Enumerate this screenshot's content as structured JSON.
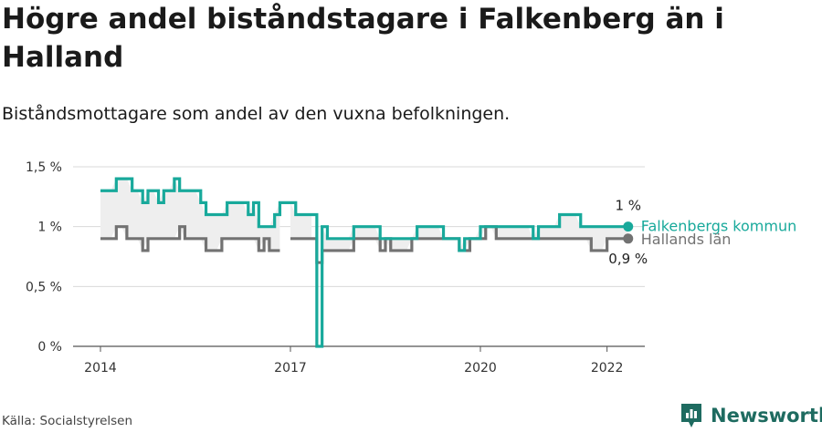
{
  "title": "Högre andel biståndstagare i Falkenberg än i Halland",
  "subtitle": "Biståndsmottagare som andel av den vuxna befolkningen.",
  "source": "Källa: Socialstyrelsen",
  "brand": "Newsworthy",
  "colors": {
    "falkenberg": "#18a99b",
    "halland": "#727272",
    "band": "#eeeeee",
    "grid": "#d9d9d9"
  },
  "chart_data": {
    "type": "line",
    "title": "Högre andel biståndstagare i Falkenberg än i Halland",
    "subtitle": "Biståndsmottagare som andel av den vuxna befolkningen.",
    "y_ticks": [
      {
        "value": 0,
        "label": "0 %"
      },
      {
        "value": 0.5,
        "label": "0,5 %"
      },
      {
        "value": 1,
        "label": "1 %"
      },
      {
        "value": 1.5,
        "label": "1,5 %"
      }
    ],
    "ylim": [
      0,
      1.5
    ],
    "x_ticks": [
      "2014",
      "2017",
      "2020",
      "2022"
    ],
    "grid": true,
    "series": [
      {
        "name": "Falkenbergs kommun",
        "color": "#18a99b",
        "last_label": "1 %",
        "points": [
          [
            "2014-01",
            1.3
          ],
          [
            "2014-02",
            1.3
          ],
          [
            "2014-03",
            1.3
          ],
          [
            "2014-04",
            1.4
          ],
          [
            "2014-05",
            1.4
          ],
          [
            "2014-06",
            1.4
          ],
          [
            "2014-07",
            1.3
          ],
          [
            "2014-08",
            1.3
          ],
          [
            "2014-09",
            1.2
          ],
          [
            "2014-10",
            1.3
          ],
          [
            "2014-11",
            1.3
          ],
          [
            "2014-12",
            1.2
          ],
          [
            "2015-01",
            1.3
          ],
          [
            "2015-02",
            1.3
          ],
          [
            "2015-03",
            1.4
          ],
          [
            "2015-04",
            1.3
          ],
          [
            "2015-05",
            1.3
          ],
          [
            "2015-06",
            1.3
          ],
          [
            "2015-07",
            1.3
          ],
          [
            "2015-08",
            1.2
          ],
          [
            "2015-09",
            1.1
          ],
          [
            "2015-10",
            1.1
          ],
          [
            "2015-11",
            1.1
          ],
          [
            "2015-12",
            1.1
          ],
          [
            "2016-01",
            1.2
          ],
          [
            "2016-02",
            1.2
          ],
          [
            "2016-03",
            1.2
          ],
          [
            "2016-04",
            1.2
          ],
          [
            "2016-05",
            1.1
          ],
          [
            "2016-06",
            1.2
          ],
          [
            "2016-07",
            1.0
          ],
          [
            "2016-08",
            1.0
          ],
          [
            "2016-09",
            1.0
          ],
          [
            "2016-10",
            1.1
          ],
          [
            "2016-11",
            1.2
          ],
          [
            "2016-12",
            1.2
          ],
          [
            "2017-01",
            1.2
          ],
          [
            "2017-02",
            1.1
          ],
          [
            "2017-03",
            1.1
          ],
          [
            "2017-04",
            1.1
          ],
          [
            "2017-05",
            1.1
          ],
          [
            "2017-06",
            0.0
          ],
          [
            "2017-07",
            1.0
          ],
          [
            "2017-08",
            0.9
          ],
          [
            "2017-09",
            0.9
          ],
          [
            "2017-10",
            0.9
          ],
          [
            "2017-11",
            0.9
          ],
          [
            "2017-12",
            0.9
          ],
          [
            "2018-01",
            1.0
          ],
          [
            "2018-02",
            1.0
          ],
          [
            "2018-03",
            1.0
          ],
          [
            "2018-04",
            1.0
          ],
          [
            "2018-05",
            1.0
          ],
          [
            "2018-06",
            0.9
          ],
          [
            "2018-07",
            0.9
          ],
          [
            "2018-08",
            0.9
          ],
          [
            "2018-09",
            0.9
          ],
          [
            "2018-10",
            0.9
          ],
          [
            "2018-11",
            0.9
          ],
          [
            "2018-12",
            0.9
          ],
          [
            "2019-01",
            1.0
          ],
          [
            "2019-02",
            1.0
          ],
          [
            "2019-03",
            1.0
          ],
          [
            "2019-04",
            1.0
          ],
          [
            "2019-05",
            1.0
          ],
          [
            "2019-06",
            0.9
          ],
          [
            "2019-07",
            0.9
          ],
          [
            "2019-08",
            0.9
          ],
          [
            "2019-09",
            0.8
          ],
          [
            "2019-10",
            0.9
          ],
          [
            "2019-11",
            0.9
          ],
          [
            "2019-12",
            0.9
          ],
          [
            "2020-01",
            1.0
          ],
          [
            "2020-02",
            1.0
          ],
          [
            "2020-03",
            1.0
          ],
          [
            "2020-04",
            1.0
          ],
          [
            "2020-05",
            1.0
          ],
          [
            "2020-06",
            1.0
          ],
          [
            "2020-07",
            1.0
          ],
          [
            "2020-08",
            1.0
          ],
          [
            "2020-09",
            1.0
          ],
          [
            "2020-10",
            1.0
          ],
          [
            "2020-11",
            0.9
          ],
          [
            "2020-12",
            1.0
          ],
          [
            "2021-01",
            1.0
          ],
          [
            "2021-02",
            1.0
          ],
          [
            "2021-03",
            1.0
          ],
          [
            "2021-04",
            1.1
          ],
          [
            "2021-05",
            1.1
          ],
          [
            "2021-06",
            1.1
          ],
          [
            "2021-07",
            1.1
          ],
          [
            "2021-08",
            1.0
          ],
          [
            "2021-09",
            1.0
          ],
          [
            "2021-10",
            1.0
          ],
          [
            "2021-11",
            1.0
          ],
          [
            "2021-12",
            1.0
          ],
          [
            "2022-01",
            1.0
          ],
          [
            "2022-02",
            1.0
          ],
          [
            "2022-03",
            1.0
          ],
          [
            "2022-04",
            1.0
          ],
          [
            "2022-05",
            1.0
          ]
        ]
      },
      {
        "name": "Hallands län",
        "color": "#727272",
        "last_label": "0,9 %",
        "points": [
          [
            "2014-01",
            0.9
          ],
          [
            "2014-02",
            0.9
          ],
          [
            "2014-03",
            0.9
          ],
          [
            "2014-04",
            1.0
          ],
          [
            "2014-05",
            1.0
          ],
          [
            "2014-06",
            0.9
          ],
          [
            "2014-07",
            0.9
          ],
          [
            "2014-08",
            0.9
          ],
          [
            "2014-09",
            0.8
          ],
          [
            "2014-10",
            0.9
          ],
          [
            "2014-11",
            0.9
          ],
          [
            "2014-12",
            0.9
          ],
          [
            "2015-01",
            0.9
          ],
          [
            "2015-02",
            0.9
          ],
          [
            "2015-03",
            0.9
          ],
          [
            "2015-04",
            1.0
          ],
          [
            "2015-05",
            0.9
          ],
          [
            "2015-06",
            0.9
          ],
          [
            "2015-07",
            0.9
          ],
          [
            "2015-08",
            0.9
          ],
          [
            "2015-09",
            0.8
          ],
          [
            "2015-10",
            0.8
          ],
          [
            "2015-11",
            0.8
          ],
          [
            "2015-12",
            0.9
          ],
          [
            "2016-01",
            0.9
          ],
          [
            "2016-02",
            0.9
          ],
          [
            "2016-03",
            0.9
          ],
          [
            "2016-04",
            0.9
          ],
          [
            "2016-05",
            0.9
          ],
          [
            "2016-06",
            0.9
          ],
          [
            "2016-07",
            0.8
          ],
          [
            "2016-08",
            0.9
          ],
          [
            "2016-09",
            0.8
          ],
          [
            "2016-10",
            0.8
          ],
          [
            "2016-11",
            0.8
          ],
          [
            "2016-12",
            null
          ],
          [
            "2017-01",
            0.9
          ],
          [
            "2017-02",
            0.9
          ],
          [
            "2017-03",
            0.9
          ],
          [
            "2017-04",
            0.9
          ],
          [
            "2017-05",
            0.9
          ],
          [
            "2017-06",
            0.7
          ],
          [
            "2017-07",
            0.8
          ],
          [
            "2017-08",
            0.8
          ],
          [
            "2017-09",
            0.8
          ],
          [
            "2017-10",
            0.8
          ],
          [
            "2017-11",
            0.8
          ],
          [
            "2017-12",
            0.8
          ],
          [
            "2018-01",
            0.9
          ],
          [
            "2018-02",
            0.9
          ],
          [
            "2018-03",
            0.9
          ],
          [
            "2018-04",
            0.9
          ],
          [
            "2018-05",
            0.9
          ],
          [
            "2018-06",
            0.8
          ],
          [
            "2018-07",
            0.9
          ],
          [
            "2018-08",
            0.8
          ],
          [
            "2018-09",
            0.8
          ],
          [
            "2018-10",
            0.8
          ],
          [
            "2018-11",
            0.8
          ],
          [
            "2018-12",
            0.9
          ],
          [
            "2019-01",
            0.9
          ],
          [
            "2019-02",
            0.9
          ],
          [
            "2019-03",
            0.9
          ],
          [
            "2019-04",
            0.9
          ],
          [
            "2019-05",
            0.9
          ],
          [
            "2019-06",
            0.9
          ],
          [
            "2019-07",
            0.9
          ],
          [
            "2019-08",
            0.9
          ],
          [
            "2019-09",
            0.8
          ],
          [
            "2019-10",
            0.8
          ],
          [
            "2019-11",
            0.9
          ],
          [
            "2019-12",
            0.9
          ],
          [
            "2020-01",
            0.9
          ],
          [
            "2020-02",
            1.0
          ],
          [
            "2020-03",
            1.0
          ],
          [
            "2020-04",
            0.9
          ],
          [
            "2020-05",
            0.9
          ],
          [
            "2020-06",
            0.9
          ],
          [
            "2020-07",
            0.9
          ],
          [
            "2020-08",
            0.9
          ],
          [
            "2020-09",
            0.9
          ],
          [
            "2020-10",
            0.9
          ],
          [
            "2020-11",
            0.9
          ],
          [
            "2020-12",
            0.9
          ],
          [
            "2021-01",
            0.9
          ],
          [
            "2021-02",
            0.9
          ],
          [
            "2021-03",
            0.9
          ],
          [
            "2021-04",
            0.9
          ],
          [
            "2021-05",
            0.9
          ],
          [
            "2021-06",
            0.9
          ],
          [
            "2021-07",
            0.9
          ],
          [
            "2021-08",
            0.9
          ],
          [
            "2021-09",
            0.9
          ],
          [
            "2021-10",
            0.8
          ],
          [
            "2021-11",
            0.8
          ],
          [
            "2021-12",
            0.8
          ],
          [
            "2022-01",
            0.9
          ],
          [
            "2022-02",
            0.9
          ],
          [
            "2022-03",
            0.9
          ],
          [
            "2022-04",
            0.9
          ],
          [
            "2022-05",
            0.9
          ]
        ]
      }
    ]
  }
}
